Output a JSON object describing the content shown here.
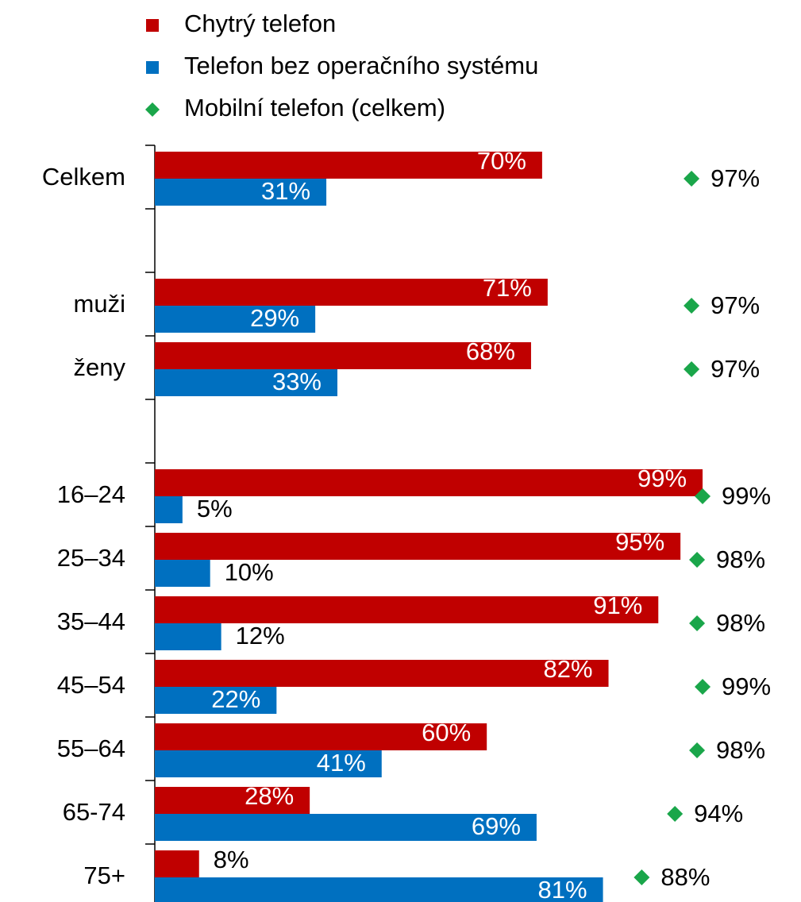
{
  "chart_data": {
    "type": "bar",
    "orientation": "horizontal",
    "categories": [
      "Celkem",
      null,
      "muži",
      "ženy",
      null,
      "16–24",
      "25–34",
      "35–44",
      "45–54",
      "55–64",
      "65-74",
      "75+"
    ],
    "series": [
      {
        "name": "Chytrý telefon",
        "type": "bar",
        "color": "#c00000",
        "values": [
          70,
          null,
          71,
          68,
          null,
          99,
          95,
          91,
          82,
          60,
          28,
          8
        ],
        "value_labels": [
          "70%",
          null,
          "71%",
          "68%",
          null,
          "99%",
          "95%",
          "91%",
          "82%",
          "60%",
          "28%",
          "8%"
        ]
      },
      {
        "name": "Telefon bez operačního systému",
        "type": "bar",
        "color": "#0070c0",
        "values": [
          31,
          null,
          29,
          33,
          null,
          5,
          10,
          12,
          22,
          41,
          69,
          81
        ],
        "value_labels": [
          "31%",
          null,
          "29%",
          "33%",
          null,
          "5%",
          "10%",
          "12%",
          "22%",
          "41%",
          "69%",
          "81%"
        ]
      },
      {
        "name": "Mobilní telefon (celkem)",
        "type": "scatter",
        "marker": "diamond",
        "color": "#1aa64a",
        "values": [
          97,
          null,
          97,
          97,
          null,
          99,
          98,
          98,
          99,
          98,
          94,
          88
        ],
        "value_labels": [
          "97%",
          null,
          "97%",
          "97%",
          null,
          "99%",
          "98%",
          "98%",
          "99%",
          "98%",
          "94%",
          "88%"
        ]
      }
    ],
    "xlim": [
      0,
      100
    ],
    "legend": "top"
  }
}
